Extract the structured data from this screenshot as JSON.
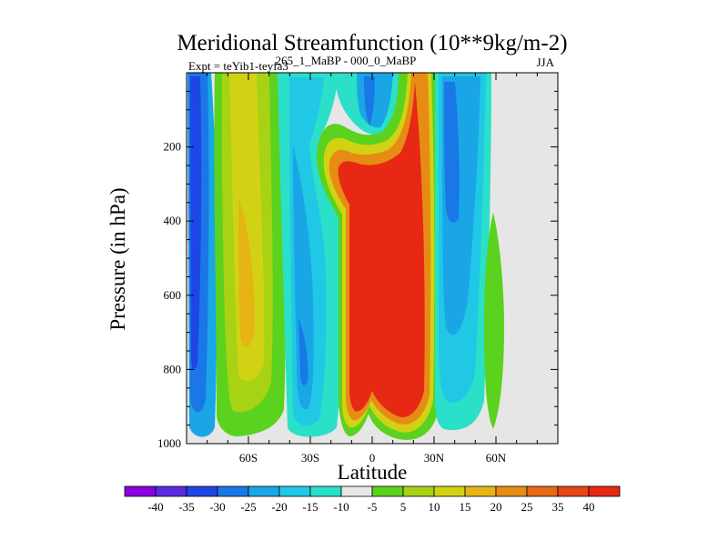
{
  "chart_data": {
    "type": "heatmap",
    "title": "Meridional Streamfunction (10**9kg/m-2)",
    "subtitle_left": "Expt = teYib1-teyfa3",
    "subtitle_center": "265_1_MaBP - 000_0_MaBP",
    "subtitle_right": "JJA",
    "xlabel": "Latitude",
    "ylabel": "Pressure (in hPa)",
    "xlim": [
      -90,
      90
    ],
    "ylim": [
      1000,
      0
    ],
    "x_ticks": [
      {
        "value": -60,
        "label": "60S"
      },
      {
        "value": -30,
        "label": "30S"
      },
      {
        "value": 0,
        "label": "0"
      },
      {
        "value": 30,
        "label": "30N"
      },
      {
        "value": 60,
        "label": "60N"
      }
    ],
    "y_ticks": [
      {
        "value": 200,
        "label": "200"
      },
      {
        "value": 400,
        "label": "400"
      },
      {
        "value": 600,
        "label": "600"
      },
      {
        "value": 800,
        "label": "800"
      },
      {
        "value": 1000,
        "label": "1000"
      }
    ],
    "missing_color": "#e6e6e6",
    "colorbar": {
      "colors": [
        "#8a00e0",
        "#5a2ae0",
        "#1e46e6",
        "#1a78e6",
        "#1aa6e6",
        "#20c8e6",
        "#2ae0c8",
        "#e8e8e8",
        "#5ad21e",
        "#a8d214",
        "#d2d214",
        "#e6b414",
        "#e68c14",
        "#e66a14",
        "#e64614",
        "#e62814"
      ],
      "labels": [
        "-40",
        "-35",
        "-30",
        "-25",
        "-20",
        "-15",
        "-10",
        "-5",
        "5",
        "10",
        "15",
        "20",
        "25",
        "35",
        "40"
      ]
    },
    "field_features": [
      {
        "name": "SH polar cell",
        "lat": -79,
        "width_deg": 5,
        "p_top": 0,
        "p_bottom": 960,
        "value": -30
      },
      {
        "name": "SH positive column",
        "lat": -58,
        "width_deg": 10,
        "p_top": 0,
        "p_bottom": 970,
        "value": 20
      },
      {
        "name": "SH midlat negative",
        "lat": -35,
        "width_deg": 7,
        "p_top": 0,
        "p_bottom": 975,
        "value": -20
      },
      {
        "name": "Tropical negative upper",
        "lat": -2,
        "width_deg": 4,
        "p_top": 0,
        "p_bottom": 110,
        "value": -20
      },
      {
        "name": "Hadley cell",
        "lat": 3,
        "width_deg": 28,
        "p_top": 180,
        "p_bottom": 970,
        "value": 40
      },
      {
        "name": "NH midlat negative",
        "lat": 38,
        "width_deg": 6,
        "p_top": 0,
        "p_bottom": 960,
        "value": -20
      },
      {
        "name": "NH positive blob",
        "lat": 62,
        "width_deg": 4,
        "p_top": 380,
        "p_bottom": 960,
        "value": 10
      }
    ]
  }
}
